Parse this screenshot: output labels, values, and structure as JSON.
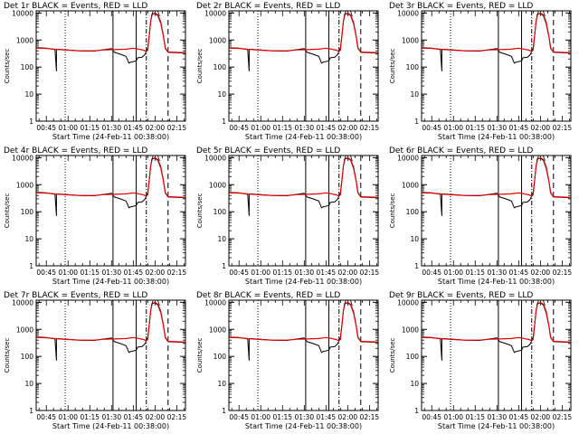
{
  "colors": {
    "events": "#000000",
    "lld": "#e00000",
    "background": "#ffffff"
  },
  "chart_data": [
    {
      "panel": "1r",
      "type": "line",
      "title": "Det 1r BLACK = Events, RED = LLD"
    },
    {
      "panel": "2r",
      "type": "line",
      "title": "Det 2r BLACK = Events, RED = LLD"
    },
    {
      "panel": "3r",
      "type": "line",
      "title": "Det 3r BLACK = Events, RED = LLD"
    },
    {
      "panel": "4r",
      "type": "line",
      "title": "Det 4r BLACK = Events, RED = LLD"
    },
    {
      "panel": "5r",
      "type": "line",
      "title": "Det 5r BLACK = Events, RED = LLD"
    },
    {
      "panel": "6r",
      "type": "line",
      "title": "Det 6r BLACK = Events, RED = LLD"
    },
    {
      "panel": "7r",
      "type": "line",
      "title": "Det 7r BLACK = Events, RED = LLD"
    },
    {
      "panel": "8r",
      "type": "line",
      "title": "Det 8r BLACK = Events, RED = LLD"
    },
    {
      "panel": "9r",
      "type": "line",
      "title": "Det 9r BLACK = Events, RED = LLD"
    }
  ],
  "shared": {
    "ylabel": "Counts/sec",
    "xlabel": "Start Time (24-Feb-11 00:38:00)",
    "y_scale": "log",
    "ylim": [
      1,
      12000
    ],
    "y_ticks": [
      {
        "v": 1,
        "label": "1"
      },
      {
        "v": 10,
        "label": "10"
      },
      {
        "v": 100,
        "label": "100"
      },
      {
        "v": 1000,
        "label": "1000"
      },
      {
        "v": 10000,
        "label": "10000"
      }
    ],
    "xlim": [
      "00:38",
      "02:21"
    ],
    "x_ticks": [
      "00:45",
      "01:00",
      "01:15",
      "01:30",
      "01:45",
      "02:00",
      "02:15"
    ],
    "vlines": [
      {
        "x": "00:58",
        "style": "dotted"
      },
      {
        "x": "01:31",
        "style": "solid"
      },
      {
        "x": "01:47",
        "style": "solid"
      },
      {
        "x": "01:54",
        "style": "dashdot"
      },
      {
        "x": "02:09",
        "style": "dashed"
      }
    ],
    "events": [
      [
        "00:38",
        520
      ],
      [
        "00:45",
        500
      ],
      [
        "00:51",
        440
      ],
      [
        "00:52",
        70
      ],
      [
        "00:52",
        460
      ],
      [
        "01:00",
        430
      ],
      [
        "01:08",
        400
      ],
      [
        "01:18",
        390
      ],
      [
        "01:25",
        440
      ],
      [
        "01:30",
        480
      ],
      [
        "01:32",
        350
      ],
      [
        "01:36",
        300
      ],
      [
        "01:40",
        250
      ],
      [
        "01:42",
        140
      ],
      [
        "01:43",
        150
      ],
      [
        "01:47",
        170
      ],
      [
        "01:48",
        220
      ],
      [
        "01:51",
        230
      ],
      [
        "01:53",
        290
      ],
      [
        "01:54",
        380
      ],
      [
        "01:55",
        500
      ],
      [
        "01:56",
        1500
      ],
      [
        "01:57",
        5000
      ],
      [
        "01:58",
        9000
      ],
      [
        "02:00",
        9500
      ],
      [
        "02:02",
        8000
      ],
      [
        "02:04",
        4000
      ],
      [
        "02:06",
        1200
      ],
      [
        "02:07",
        500
      ],
      [
        "02:09",
        350
      ],
      [
        "02:21",
        330
      ]
    ],
    "lld": [
      [
        "00:38",
        500
      ],
      [
        "00:45",
        490
      ],
      [
        "00:52",
        450
      ],
      [
        "01:00",
        420
      ],
      [
        "01:08",
        400
      ],
      [
        "01:18",
        400
      ],
      [
        "01:25",
        430
      ],
      [
        "01:32",
        440
      ],
      [
        "01:40",
        460
      ],
      [
        "01:45",
        500
      ],
      [
        "01:48",
        470
      ],
      [
        "01:52",
        420
      ],
      [
        "01:54",
        380
      ],
      [
        "01:55",
        420
      ],
      [
        "01:56",
        1500
      ],
      [
        "01:57",
        5000
      ],
      [
        "01:58",
        9000
      ],
      [
        "02:00",
        10000
      ],
      [
        "02:02",
        8500
      ],
      [
        "02:04",
        4500
      ],
      [
        "02:06",
        1200
      ],
      [
        "02:07",
        520
      ],
      [
        "02:09",
        360
      ],
      [
        "02:21",
        340
      ]
    ]
  }
}
